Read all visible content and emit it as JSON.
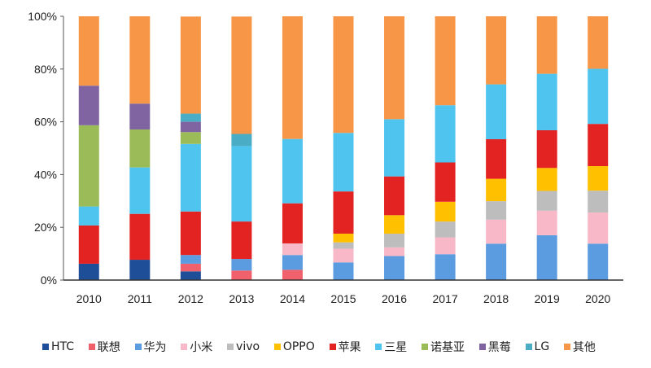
{
  "chart_data": {
    "type": "bar",
    "stacked": true,
    "percent": true,
    "categories": [
      "2010",
      "2011",
      "2012",
      "2013",
      "2014",
      "2015",
      "2016",
      "2017",
      "2018",
      "2019",
      "2020"
    ],
    "ylim": [
      0,
      100
    ],
    "yticks": [
      "0%",
      "20%",
      "40%",
      "60%",
      "80%",
      "100%"
    ],
    "grid": false,
    "legend_position": "bottom",
    "series": [
      {
        "name": "HTC",
        "color": "#1F4E99",
        "values": [
          6.2,
          7.7,
          3.3,
          0,
          0,
          0,
          0,
          0,
          0,
          0,
          0
        ]
      },
      {
        "name": "联想",
        "color": "#F0616B",
        "values": [
          0,
          0,
          2.9,
          3.6,
          3.9,
          0,
          0,
          0,
          0,
          0,
          0
        ]
      },
      {
        "name": "华为",
        "color": "#5B9BE0",
        "values": [
          0,
          0,
          3.3,
          4.4,
          5.6,
          6.7,
          9.1,
          9.8,
          13.8,
          17.0,
          13.8
        ]
      },
      {
        "name": "小米",
        "color": "#F9B8C8",
        "values": [
          0,
          0,
          0,
          0,
          4.4,
          5.2,
          3.3,
          6.4,
          9.1,
          9.3,
          11.8
        ]
      },
      {
        "name": "vivo",
        "color": "#BDBDBD",
        "values": [
          0,
          0,
          0,
          0,
          0,
          2.4,
          5.2,
          6.0,
          7.0,
          7.5,
          8.3
        ]
      },
      {
        "name": "OPPO",
        "color": "#FFC000",
        "values": [
          0,
          0,
          0,
          0,
          0,
          3.3,
          7.0,
          7.5,
          8.5,
          8.7,
          9.3
        ]
      },
      {
        "name": "苹果",
        "color": "#E32222",
        "values": [
          14.5,
          17.4,
          16.5,
          14.2,
          15.2,
          16.0,
          14.7,
          14.9,
          15.0,
          14.3,
          16.0
        ]
      },
      {
        "name": "三星",
        "color": "#4FC4EE",
        "values": [
          7.2,
          17.6,
          25.6,
          28.6,
          24.4,
          22.2,
          21.7,
          21.7,
          20.8,
          21.4,
          20.9
        ]
      },
      {
        "name": "诺基亚",
        "color": "#9BBB59",
        "values": [
          30.8,
          14.4,
          4.5,
          0,
          0,
          0,
          0,
          0,
          0,
          0,
          0
        ]
      },
      {
        "name": "黑莓",
        "color": "#8064A2",
        "values": [
          15.0,
          9.8,
          3.9,
          0,
          0,
          0,
          0,
          0,
          0,
          0,
          0
        ]
      },
      {
        "name": "LG",
        "color": "#4BACC6",
        "values": [
          0,
          0,
          3.1,
          4.6,
          0,
          0,
          0,
          0,
          0,
          0,
          0
        ]
      },
      {
        "name": "其他",
        "color": "#F79646",
        "values": [
          26.3,
          33.1,
          36.8,
          44.5,
          46.5,
          44.2,
          39.0,
          33.7,
          25.8,
          21.8,
          19.9
        ]
      }
    ]
  }
}
